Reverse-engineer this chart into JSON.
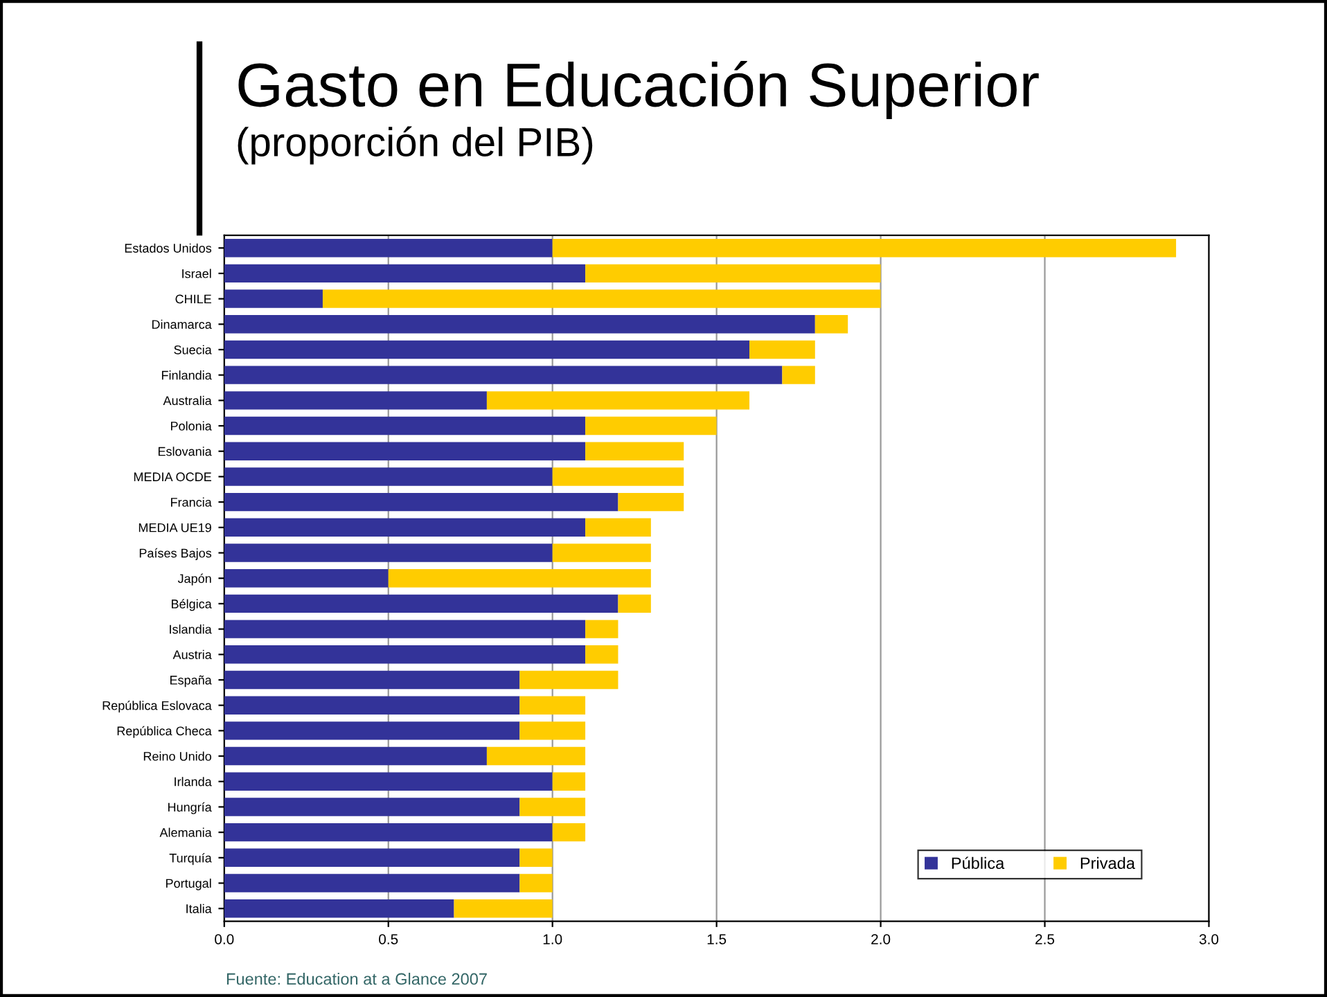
{
  "chart_data": {
    "type": "bar",
    "orientation": "horizontal",
    "stacked": true,
    "title": "Gasto en Educación Superior",
    "subtitle": "(proporción del PIB)",
    "categories": [
      "Estados Unidos",
      "Israel",
      "CHILE",
      "Dinamarca",
      "Suecia",
      "Finlandia",
      "Australia",
      "Polonia",
      "Eslovania",
      "MEDIA OCDE",
      "Francia",
      "MEDIA UE19",
      "Países Bajos",
      "Japón",
      "Bélgica",
      "Islandia",
      "Austria",
      "España",
      "República Eslovaca",
      "República Checa",
      "Reino Unido",
      "Irlanda",
      "Hungría",
      "Alemania",
      "Turquía",
      "Portugal",
      "Italia"
    ],
    "series": [
      {
        "name": "Pública",
        "color": "#333399",
        "values": [
          1.0,
          1.1,
          0.3,
          1.8,
          1.6,
          1.7,
          0.8,
          1.1,
          1.1,
          1.0,
          1.2,
          1.1,
          1.0,
          0.5,
          1.2,
          1.1,
          1.1,
          0.9,
          0.9,
          0.9,
          0.8,
          1.0,
          0.9,
          1.0,
          0.9,
          0.9,
          0.7
        ]
      },
      {
        "name": "Privada",
        "color": "#ffcc00",
        "values": [
          1.9,
          0.9,
          1.7,
          0.1,
          0.2,
          0.1,
          0.8,
          0.4,
          0.3,
          0.4,
          0.2,
          0.2,
          0.3,
          0.8,
          0.1,
          0.1,
          0.1,
          0.3,
          0.2,
          0.2,
          0.3,
          0.1,
          0.2,
          0.1,
          0.1,
          0.1,
          0.3
        ]
      }
    ],
    "xlim": [
      0,
      3.0
    ],
    "xticks": [
      {
        "value": 0,
        "label": "0.0"
      },
      0.5,
      {
        "value": 1,
        "label": "1.0"
      },
      1.5,
      {
        "value": 2,
        "label": "2.0"
      },
      2.5,
      {
        "value": 3,
        "label": "3.0"
      }
    ],
    "grid": "x",
    "legend": "bottom right",
    "annotations": [
      "Fuente: Education at a Glance 2007"
    ]
  }
}
